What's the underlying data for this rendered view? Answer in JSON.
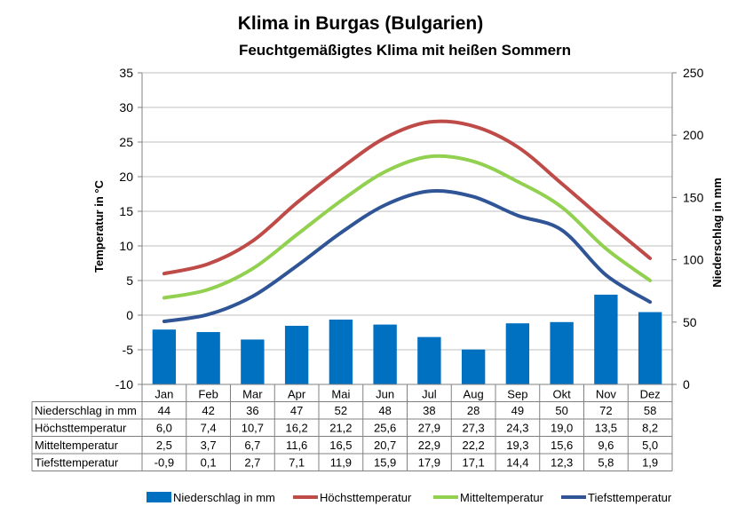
{
  "chart_data": {
    "type": "bar+line",
    "title": "Klima in Burgas (Bulgarien)",
    "subtitle": "Feuchtgemäßigtes Klima mit heißen Sommern",
    "ylabel_left": "Temperatur in °C",
    "ylabel_right": "Niederschlag in mm",
    "ylim_left": [
      -10,
      35
    ],
    "ylim_right": [
      0,
      250
    ],
    "yticks_left": [
      -10,
      -5,
      0,
      5,
      10,
      15,
      20,
      25,
      30,
      35
    ],
    "yticks_right": [
      0,
      50,
      100,
      150,
      200,
      250
    ],
    "grid": true,
    "legend_position": "bottom",
    "categories": [
      "Jan",
      "Feb",
      "Mar",
      "Apr",
      "Mai",
      "Jun",
      "Jul",
      "Aug",
      "Sep",
      "Okt",
      "Nov",
      "Dez"
    ],
    "series": [
      {
        "name": "Niederschlag in mm",
        "kind": "bar",
        "axis": "right",
        "color": "#0070C0",
        "values": [
          44,
          42,
          36,
          47,
          52,
          48,
          38,
          28,
          49,
          50,
          72,
          58
        ],
        "labels": [
          "44",
          "42",
          "36",
          "47",
          "52",
          "48",
          "38",
          "28",
          "49",
          "50",
          "72",
          "58"
        ]
      },
      {
        "name": "Höchsttemperatur",
        "kind": "line",
        "axis": "left",
        "color": "#BE4B48",
        "values": [
          6.0,
          7.4,
          10.7,
          16.2,
          21.2,
          25.6,
          27.9,
          27.3,
          24.3,
          19.0,
          13.5,
          8.2
        ],
        "labels": [
          "6,0",
          "7,4",
          "10,7",
          "16,2",
          "21,2",
          "25,6",
          "27,9",
          "27,3",
          "24,3",
          "19,0",
          "13,5",
          "8,2"
        ]
      },
      {
        "name": "Mitteltemperatur",
        "kind": "line",
        "axis": "left",
        "color": "#92D050",
        "values": [
          2.5,
          3.7,
          6.7,
          11.6,
          16.5,
          20.7,
          22.9,
          22.2,
          19.3,
          15.6,
          9.6,
          5.0
        ],
        "labels": [
          "2,5",
          "3,7",
          "6,7",
          "11,6",
          "16,5",
          "20,7",
          "22,9",
          "22,2",
          "19,3",
          "15,6",
          "9,6",
          "5,0"
        ]
      },
      {
        "name": "Tiefsttemperatur",
        "kind": "line",
        "axis": "left",
        "color": "#2F5597",
        "values": [
          -0.9,
          0.1,
          2.7,
          7.1,
          11.9,
          15.9,
          17.9,
          17.1,
          14.4,
          12.3,
          5.8,
          1.9
        ],
        "labels": [
          "-0,9",
          "0,1",
          "2,7",
          "7,1",
          "11,9",
          "15,9",
          "17,9",
          "17,1",
          "14,4",
          "12,3",
          "5,8",
          "1,9"
        ]
      }
    ]
  }
}
